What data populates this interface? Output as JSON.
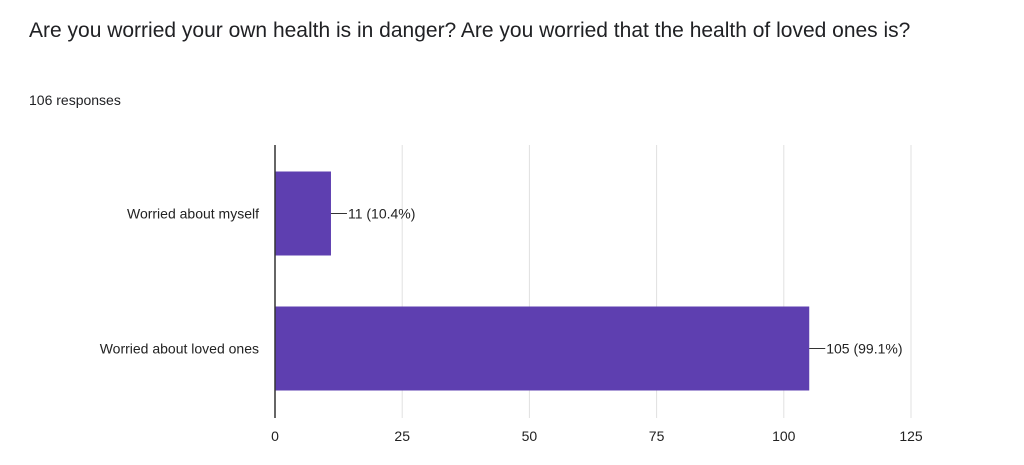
{
  "question": {
    "title": "Are you worried your own health is in danger? Are you worried that the health of loved ones is?",
    "responses": "106 responses"
  },
  "colors": {
    "bar": "#5e3fb0",
    "grid": "#e0e0e0",
    "axis": "#333333"
  },
  "chart_data": {
    "type": "bar",
    "orientation": "horizontal",
    "categories": [
      "Worried about myself",
      "Worried about loved ones"
    ],
    "values": [
      11,
      105
    ],
    "data_labels": [
      "11 (10.4%)",
      "105 (99.1%)"
    ],
    "xlim": [
      0,
      125
    ],
    "xticks": [
      0,
      25,
      50,
      75,
      100,
      125
    ],
    "grid": true
  }
}
